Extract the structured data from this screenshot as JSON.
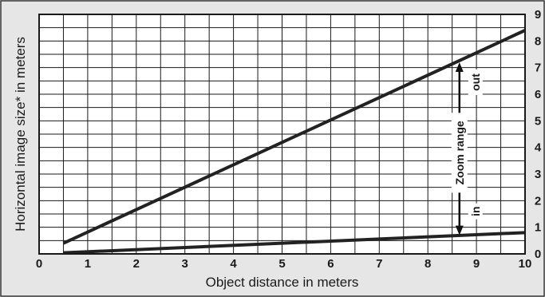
{
  "chart_data": {
    "type": "line",
    "xlabel": "Object distance in meters",
    "ylabel": "Horizontal image size* in meters",
    "xlim": [
      0,
      10
    ],
    "ylim": [
      0,
      9
    ],
    "x_ticks": [
      "0",
      "1",
      "2",
      "3",
      "4",
      "5",
      "6",
      "7",
      "8",
      "9",
      "10"
    ],
    "y_ticks": [
      "0",
      "1",
      "2",
      "3",
      "4",
      "5",
      "6",
      "7",
      "8",
      "9"
    ],
    "y_axis_side": "right",
    "grid": true,
    "grid_x_step": 0.5,
    "grid_y_step": 0.5,
    "series": [
      {
        "x": [
          0.5,
          10
        ],
        "y": [
          0.4,
          8.4
        ]
      },
      {
        "x": [
          0.5,
          10
        ],
        "y": [
          0.04,
          0.8
        ]
      }
    ],
    "annotations": {
      "zoom_range": "Zoom range",
      "out": "out",
      "in": "in"
    },
    "colors": {
      "background": "#e6e6e6",
      "plot_background": "#ffffff",
      "grid": "#1a1a1a",
      "line": "#222222"
    }
  }
}
